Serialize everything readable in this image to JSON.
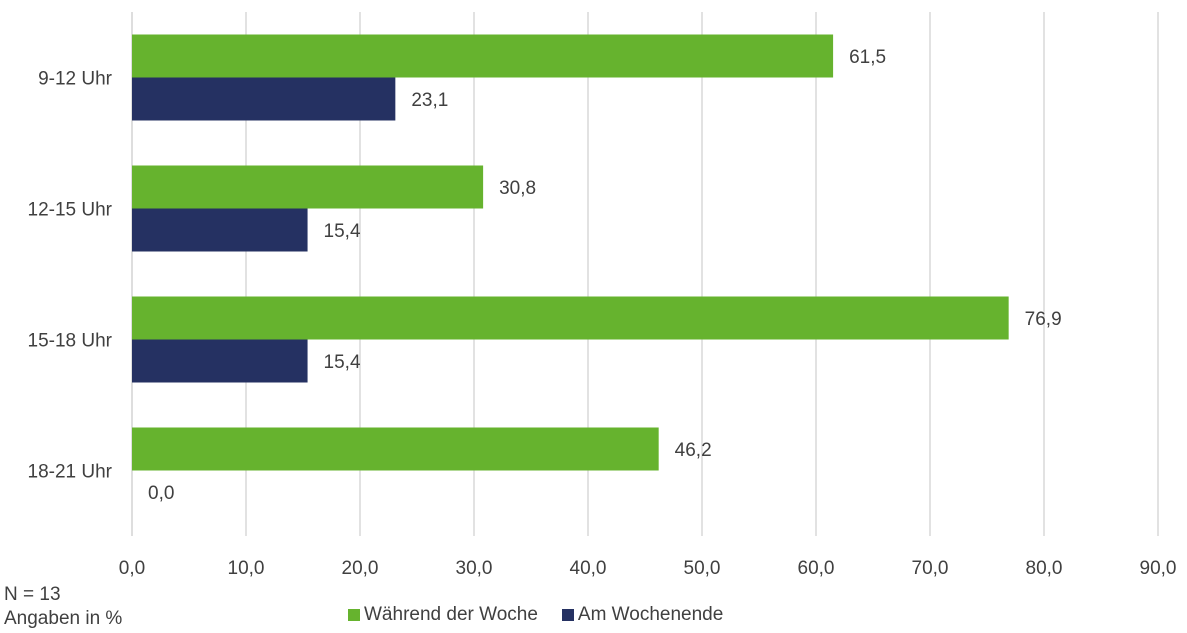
{
  "chart_data": {
    "type": "bar",
    "orientation": "horizontal",
    "categories": [
      "9-12 Uhr",
      "12-15 Uhr",
      "15-18 Uhr",
      "18-21 Uhr"
    ],
    "series": [
      {
        "name": "Während der Woche",
        "color": "#66b32e",
        "values": [
          61.5,
          30.8,
          76.9,
          46.2
        ],
        "labels": [
          "61,5",
          "30,8",
          "76,9",
          "46,2"
        ]
      },
      {
        "name": "Am Wochenende",
        "color": "#253162",
        "values": [
          23.1,
          15.4,
          15.4,
          0.0
        ],
        "labels": [
          "23,1",
          "15,4",
          "15,4",
          "0,0"
        ]
      }
    ],
    "xlim": [
      0,
      90
    ],
    "ticks": [
      0,
      10,
      20,
      30,
      40,
      50,
      60,
      70,
      80,
      90
    ],
    "tick_labels": [
      "0,0",
      "10,0",
      "20,0",
      "30,0",
      "40,0",
      "50,0",
      "60,0",
      "70,0",
      "80,0",
      "90,0"
    ],
    "grid": "vertical",
    "legend_position": "bottom"
  },
  "notes": {
    "n": "N = 13",
    "unit": "Angaben in %"
  },
  "legend": {
    "item1": "Während der Woche",
    "item2": "Am Wochenende"
  }
}
